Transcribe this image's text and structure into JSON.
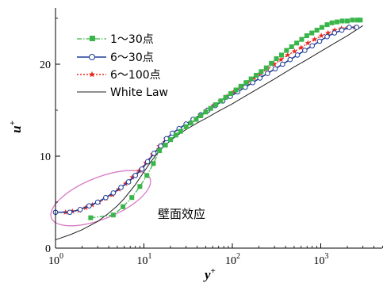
{
  "chart_data": {
    "type": "line",
    "xscale": "log",
    "xlim": [
      1,
      6000
    ],
    "ylim": [
      0,
      26
    ],
    "xticks": [
      {
        "value": 1,
        "base": "10",
        "exp": "0"
      },
      {
        "value": 10,
        "base": "10",
        "exp": "1"
      },
      {
        "value": 100,
        "base": "10",
        "exp": "2"
      },
      {
        "value": 1000,
        "base": "10",
        "exp": "3"
      }
    ],
    "yticks": [
      {
        "value": 0,
        "label": "0"
      },
      {
        "value": 10,
        "label": "10"
      },
      {
        "value": 20,
        "label": "20"
      }
    ],
    "xlabel": {
      "base": "y",
      "sup": "+"
    },
    "ylabel": {
      "base": "u",
      "sup": "+"
    },
    "legend_position": "top-left",
    "series": [
      {
        "name": "1～30点",
        "color": "#39b54a",
        "line_style": "dash-dot",
        "marker": "square",
        "x": [
          2.5,
          4.5,
          5.8,
          7.3,
          9.0,
          10.8,
          12.8,
          15.0,
          17.5,
          20,
          23,
          26,
          30,
          34,
          39,
          44,
          50,
          57,
          65,
          74,
          84,
          96,
          110,
          125,
          143,
          163,
          186,
          212,
          242,
          276,
          315,
          360,
          410,
          468,
          534,
          609,
          695,
          793,
          905,
          1030,
          1180,
          1340,
          1530,
          1750,
          2000,
          2280,
          2600,
          2800
        ],
        "y": [
          3.3,
          3.6,
          4.5,
          5.5,
          6.7,
          7.9,
          9.2,
          10.6,
          11.2,
          11.8,
          12.3,
          12.7,
          13.2,
          13.6,
          14.0,
          14.4,
          14.8,
          15.2,
          15.6,
          16.0,
          16.4,
          16.8,
          17.2,
          17.6,
          18.0,
          18.4,
          18.8,
          19.2,
          19.6,
          20.1,
          20.6,
          21.0,
          21.5,
          21.9,
          22.3,
          22.7,
          23.1,
          23.4,
          23.7,
          24.0,
          24.3,
          24.5,
          24.6,
          24.7,
          24.7,
          24.8,
          24.8,
          24.8
        ]
      },
      {
        "name": "6～30点",
        "color": "#1f3d99",
        "line_style": "solid",
        "marker": "circle-open",
        "x": [
          1,
          1.45,
          1.9,
          2.4,
          3.0,
          3.7,
          4.5,
          5.5,
          6.7,
          8.0,
          9.5,
          11,
          13,
          15.5,
          18,
          21,
          25,
          30,
          36,
          44,
          53,
          64,
          78,
          95,
          115,
          140,
          170,
          205,
          250,
          305,
          370,
          450,
          545,
          660,
          800,
          970,
          1180,
          1430,
          1730,
          2100,
          2550
        ],
        "y": [
          3.9,
          3.9,
          4.2,
          4.6,
          5.0,
          5.5,
          6.0,
          6.6,
          7.2,
          7.9,
          8.6,
          9.4,
          10.3,
          11.1,
          11.9,
          12.5,
          13.0,
          13.5,
          14.0,
          14.5,
          15.0,
          15.5,
          16.0,
          16.5,
          17.0,
          17.5,
          18.0,
          18.5,
          19.0,
          19.5,
          20.0,
          20.5,
          21.0,
          21.5,
          22.0,
          22.5,
          23.0,
          23.4,
          23.7,
          24.0,
          24.0
        ]
      },
      {
        "name": "6～100点",
        "color": "#e8281e",
        "line_style": "dotted",
        "marker": "star",
        "x": [
          1.3,
          1.55,
          1.85,
          2.2,
          2.6,
          3.1,
          3.7,
          4.4,
          5.2,
          6.2,
          7.4,
          8.8,
          10.5,
          12.5,
          14.9,
          17.7,
          21,
          25,
          30,
          36,
          43,
          51,
          61,
          73,
          87,
          104,
          124,
          148,
          176,
          210,
          250,
          298,
          355,
          423,
          504,
          600,
          715,
          852,
          1015,
          1210,
          1440,
          1715,
          2045,
          2435
        ],
        "y": [
          3.9,
          4.0,
          4.1,
          4.4,
          4.7,
          5.0,
          5.4,
          5.8,
          6.4,
          7.0,
          7.7,
          8.4,
          9.3,
          10.2,
          11.1,
          11.9,
          12.5,
          13.0,
          13.5,
          14.0,
          14.5,
          15.0,
          15.5,
          16.0,
          16.5,
          17.0,
          17.5,
          18.0,
          18.5,
          19.0,
          19.5,
          20.0,
          20.5,
          21.0,
          21.4,
          21.8,
          22.3,
          22.7,
          23.1,
          23.4,
          23.7,
          23.9,
          24.0,
          24.0
        ]
      },
      {
        "name": "White Law",
        "color": "#222222",
        "line_style": "solid",
        "marker": "none",
        "x": [
          1,
          1.5,
          2,
          3,
          4,
          5,
          6,
          8,
          10,
          12,
          15,
          20,
          25,
          30,
          40,
          50,
          70,
          100,
          150,
          200,
          300,
          500,
          700,
          1000,
          1500,
          2000,
          3000
        ],
        "y": [
          0.9,
          1.5,
          2.0,
          2.9,
          3.8,
          4.6,
          5.4,
          6.9,
          8.3,
          9.4,
          10.6,
          11.7,
          12.4,
          12.9,
          13.6,
          14.1,
          14.9,
          15.7,
          16.7,
          17.4,
          18.4,
          19.7,
          20.5,
          21.4,
          22.4,
          23.1,
          24.2
        ]
      }
    ],
    "annotation": {
      "text": "壁面效应"
    }
  }
}
